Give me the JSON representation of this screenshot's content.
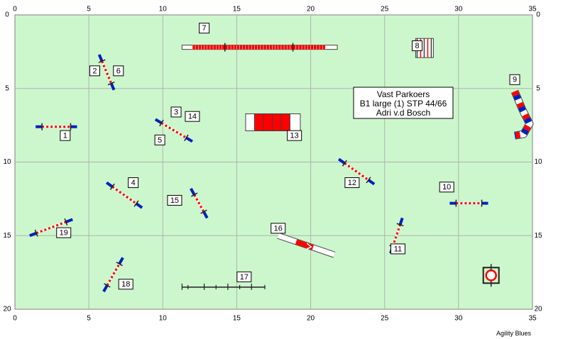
{
  "course": {
    "axis_x": {
      "min": 0,
      "max": 35,
      "ticks": [
        "0",
        "5",
        "10",
        "15",
        "20",
        "25",
        "30",
        "35"
      ]
    },
    "axis_y": {
      "min": 0,
      "max": 20,
      "ticks": [
        "0",
        "5",
        "10",
        "15",
        "20"
      ]
    },
    "colors": {
      "field": "#ccf7cc",
      "grid": "#b0b0b0",
      "bar_red": "#ff0000",
      "bar_blue": "#0020c0",
      "white": "#ffffff"
    },
    "info_lines": [
      "Vast Parkoers",
      "B1 large (1) STP 44/66",
      "Adri v.d Bosch"
    ],
    "footer": "Agility Blues",
    "numbers": [
      {
        "text": "1",
        "x": 3.4,
        "y": 8.2
      },
      {
        "text": "2",
        "x": 5.4,
        "y": 3.8
      },
      {
        "text": "3",
        "x": 10.9,
        "y": 6.6
      },
      {
        "text": "4",
        "x": 8.0,
        "y": 11.4
      },
      {
        "text": "5",
        "x": 9.8,
        "y": 8.5
      },
      {
        "text": "6",
        "x": 7.0,
        "y": 3.8
      },
      {
        "text": "7",
        "x": 12.8,
        "y": 0.9
      },
      {
        "text": "8",
        "x": 27.2,
        "y": 2.1
      },
      {
        "text": "9",
        "x": 33.8,
        "y": 4.4
      },
      {
        "text": "10",
        "x": 29.2,
        "y": 11.7
      },
      {
        "text": "11",
        "x": 25.9,
        "y": 15.9
      },
      {
        "text": "12",
        "x": 22.8,
        "y": 11.4
      },
      {
        "text": "13",
        "x": 18.9,
        "y": 8.2
      },
      {
        "text": "14",
        "x": 12.0,
        "y": 6.9
      },
      {
        "text": "15",
        "x": 10.8,
        "y": 12.6
      },
      {
        "text": "16",
        "x": 17.8,
        "y": 14.5
      },
      {
        "text": "17",
        "x": 15.5,
        "y": 17.8
      },
      {
        "text": "18",
        "x": 7.5,
        "y": 18.3
      },
      {
        "text": "19",
        "x": 3.3,
        "y": 14.8
      }
    ]
  }
}
